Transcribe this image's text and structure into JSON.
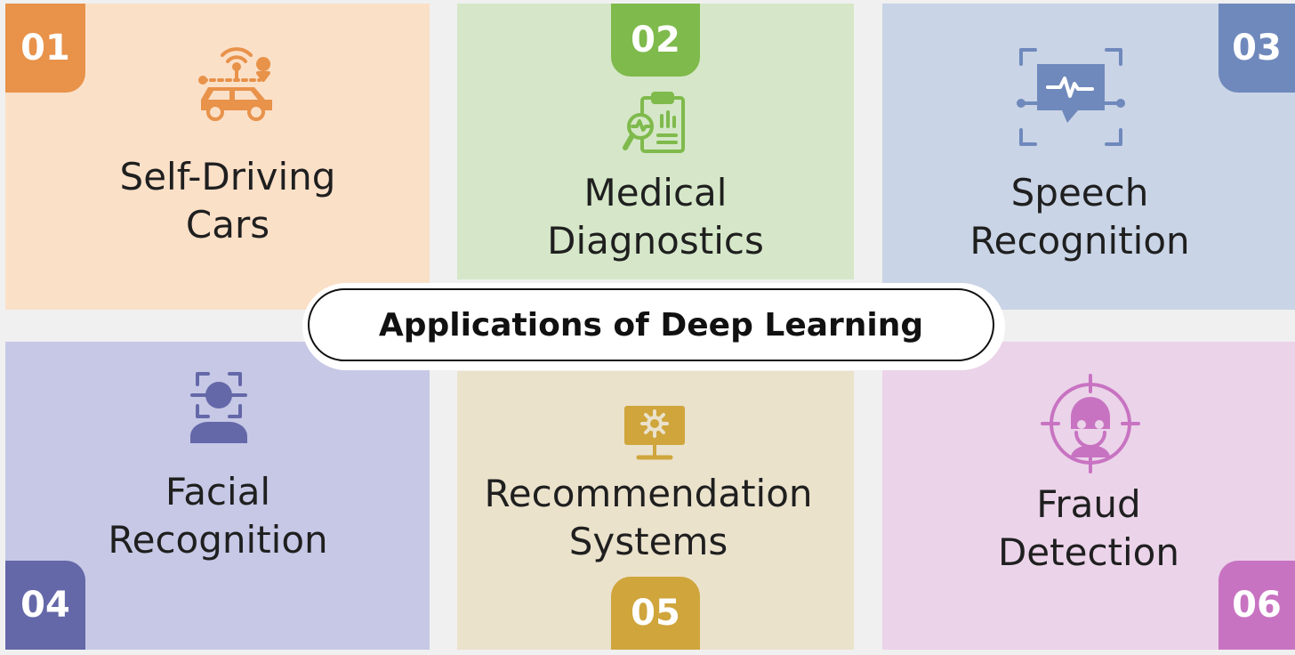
{
  "title": "Applications of Deep Learning",
  "colors": {
    "orange": "#e8924a",
    "green": "#7fba4c",
    "blue": "#6f89bc",
    "indigo": "#6468a8",
    "gold": "#cfa53c",
    "magenta": "#c873c2"
  },
  "items": [
    {
      "number": "01",
      "line1": "Self-Driving",
      "line2": "Cars",
      "icon": "self-driving-car-icon"
    },
    {
      "number": "02",
      "line1": "Medical",
      "line2": "Diagnostics",
      "icon": "medical-report-icon"
    },
    {
      "number": "03",
      "line1": "Speech",
      "line2": "Recognition",
      "icon": "speech-waveform-icon"
    },
    {
      "number": "04",
      "line1": "Facial",
      "line2": "Recognition",
      "icon": "face-scan-icon"
    },
    {
      "number": "05",
      "line1": "Recommendation",
      "line2": "Systems",
      "icon": "monitor-gear-icon"
    },
    {
      "number": "06",
      "line1": "Fraud",
      "line2": "Detection",
      "icon": "thief-target-icon"
    }
  ]
}
